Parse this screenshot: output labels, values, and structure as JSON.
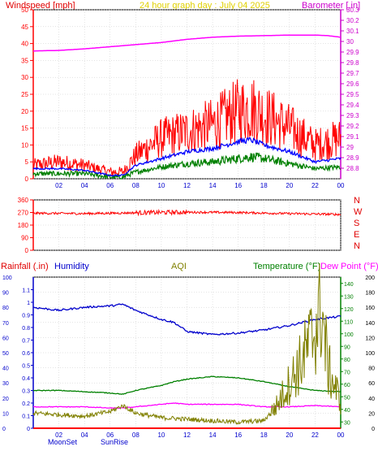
{
  "header": {
    "windspeed_title": "Windspeed [mph]",
    "graph_title": "24 hour graph day : July 04 2025",
    "barometer_title": "Barometer [.in]"
  },
  "direction_labels": [
    "N",
    "W",
    "S",
    "E",
    "N"
  ],
  "bottom_header": {
    "rainfall": "Rainfall (.in)",
    "humidity": "Humidity",
    "aqi": "AQI",
    "temperature": "Temperature (°F)",
    "dewpoint": "Dew Point (°F)"
  },
  "events": {
    "moon_set": "MoonSet",
    "sun_rise": "SunRise"
  },
  "colors": {
    "windspeed": "#ff0000",
    "gust_avg": "#0000ff",
    "wind_avg": "#008000",
    "barometer": "#ff00ff",
    "direction": "#ff0000",
    "humidity": "#0000cc",
    "temperature": "#008000",
    "dewpoint": "#ff00ff",
    "aqi": "#808000",
    "rainfall": "#ff0000",
    "axis_left": "#ff0000",
    "axis_right": "#cc00cc",
    "grid": "#c8c8c8"
  },
  "chart_data": [
    {
      "type": "line",
      "name": "wind",
      "x_ticks": [
        "02",
        "04",
        "06",
        "08",
        "10",
        "12",
        "14",
        "16",
        "18",
        "20",
        "22",
        "00"
      ],
      "ylim": [
        0,
        50
      ],
      "y_ticks": [
        "0",
        "5",
        "10",
        "15",
        "20",
        "25",
        "30",
        "35",
        "40",
        "45",
        "50"
      ],
      "y2lim": [
        28.7,
        30.3
      ],
      "y2_ticks": [
        "28.8",
        "28.9",
        "29",
        "29.1",
        "29.2",
        "29.3",
        "29.4",
        "29.5",
        "29.6",
        "29.7",
        "29.8",
        "29.9",
        "30",
        "30.1",
        "30.2",
        "30.3"
      ],
      "x_hours": [
        0,
        2,
        4,
        6,
        7,
        8,
        10,
        12,
        14,
        16,
        17,
        18,
        20,
        22,
        24
      ],
      "gust": [
        4,
        5,
        4,
        2,
        2,
        7,
        12,
        14,
        16,
        20,
        21,
        19,
        15,
        10,
        12
      ],
      "gust_avg": [
        3,
        3,
        2.5,
        1,
        1,
        4,
        6,
        8,
        9,
        11,
        11.5,
        10,
        8,
        5,
        6
      ],
      "wind_avg": [
        1.5,
        1.5,
        1.5,
        0.5,
        0.5,
        2,
        3.5,
        4.5,
        5,
        6,
        6.5,
        6,
        4.5,
        3,
        3.5
      ],
      "barometer_hours": [
        0,
        2,
        4,
        6,
        8,
        10,
        12,
        14,
        16,
        18,
        20,
        22,
        23,
        24
      ],
      "barometer": [
        29.91,
        29.915,
        29.93,
        29.95,
        29.97,
        29.99,
        30.02,
        30.04,
        30.05,
        30.055,
        30.06,
        30.06,
        30.055,
        30.04
      ]
    },
    {
      "type": "scatter",
      "name": "wind_direction",
      "ylim": [
        0,
        360
      ],
      "y_ticks": [
        "0",
        "90",
        "180",
        "270",
        "360"
      ],
      "x_hours": [
        0,
        4,
        8,
        12,
        16,
        20,
        24
      ],
      "direction": [
        265,
        262,
        268,
        272,
        270,
        262,
        256
      ]
    },
    {
      "type": "line",
      "name": "climate",
      "x_ticks": [
        "02",
        "04",
        "06",
        "08",
        "10",
        "12",
        "14",
        "16",
        "18",
        "20",
        "22",
        "00"
      ],
      "humidity_lim": [
        0,
        100
      ],
      "humidity_ticks": [
        "0",
        "10",
        "20",
        "30",
        "40",
        "50",
        "60",
        "70",
        "80",
        "90",
        "100"
      ],
      "rain_lim": [
        0,
        1.2
      ],
      "rain_ticks": [
        "0",
        "0.1",
        "0.2",
        "0.3",
        "0.4",
        "0.5",
        "0.6",
        "0.7",
        "0.8",
        "0.9",
        "1",
        "1.1"
      ],
      "temp_lim": [
        25,
        145
      ],
      "temp_ticks": [
        "30",
        "40",
        "50",
        "60",
        "70",
        "80",
        "90",
        "100",
        "110",
        "120",
        "130",
        "140"
      ],
      "aqi_lim": [
        0,
        200
      ],
      "aqi_ticks": [
        "0",
        "20",
        "40",
        "60",
        "80",
        "100",
        "120",
        "140",
        "160",
        "180",
        "200"
      ],
      "x_hours": [
        0,
        2,
        4,
        6,
        7,
        8,
        10,
        11,
        12,
        14,
        16,
        18,
        20,
        22,
        24
      ],
      "humidity": [
        80,
        78,
        80,
        81,
        82,
        78,
        72,
        70,
        64,
        62,
        63,
        65,
        68,
        72,
        74
      ],
      "temperature": [
        55,
        55,
        54,
        53,
        52,
        55,
        59,
        62,
        64,
        66,
        65,
        62,
        58,
        55,
        54
      ],
      "dewpoint": [
        42,
        42,
        42,
        41,
        41,
        42,
        44,
        45,
        44,
        44,
        44,
        42,
        42,
        43,
        42
      ],
      "aqi_hours": [
        0,
        2,
        4,
        6,
        7,
        8,
        10,
        12,
        14,
        16,
        18,
        19,
        20,
        21,
        22,
        22.5,
        23,
        24
      ],
      "aqi": [
        20,
        18,
        16,
        22,
        30,
        20,
        14,
        12,
        10,
        8,
        10,
        30,
        60,
        90,
        130,
        160,
        80,
        35
      ],
      "rainfall": 0
    }
  ]
}
